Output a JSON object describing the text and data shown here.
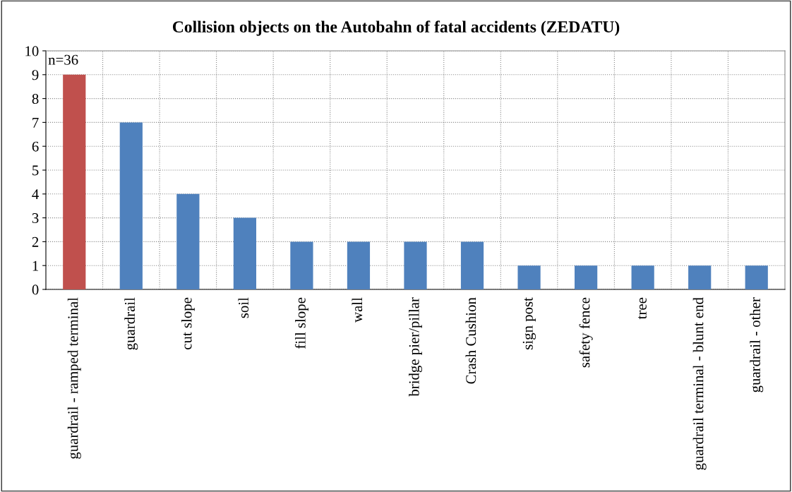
{
  "chart_data": {
    "type": "bar",
    "title": "Collision objects on the Autobahn of fatal accidents (ZEDATU)",
    "categories": [
      "guardrail - ramped terminal",
      "guardrail",
      "cut slope",
      "soil",
      "fill slope",
      "wall",
      "bridge pier/pillar",
      "Crash Cushion",
      "sign post",
      "safety fence",
      "tree",
      "guardrail terminal - blunt end",
      "guardrail - other"
    ],
    "values": [
      9,
      7,
      4,
      3,
      2,
      2,
      2,
      2,
      1,
      1,
      1,
      1,
      1
    ],
    "colors": [
      "#c0504d",
      "#4f81bd",
      "#4f81bd",
      "#4f81bd",
      "#4f81bd",
      "#4f81bd",
      "#4f81bd",
      "#4f81bd",
      "#4f81bd",
      "#4f81bd",
      "#4f81bd",
      "#4f81bd",
      "#4f81bd"
    ],
    "ylim": [
      0,
      10
    ],
    "yticks": [
      0,
      1,
      2,
      3,
      4,
      5,
      6,
      7,
      8,
      9,
      10
    ],
    "grid": true,
    "annotations": [
      "n=36"
    ]
  }
}
